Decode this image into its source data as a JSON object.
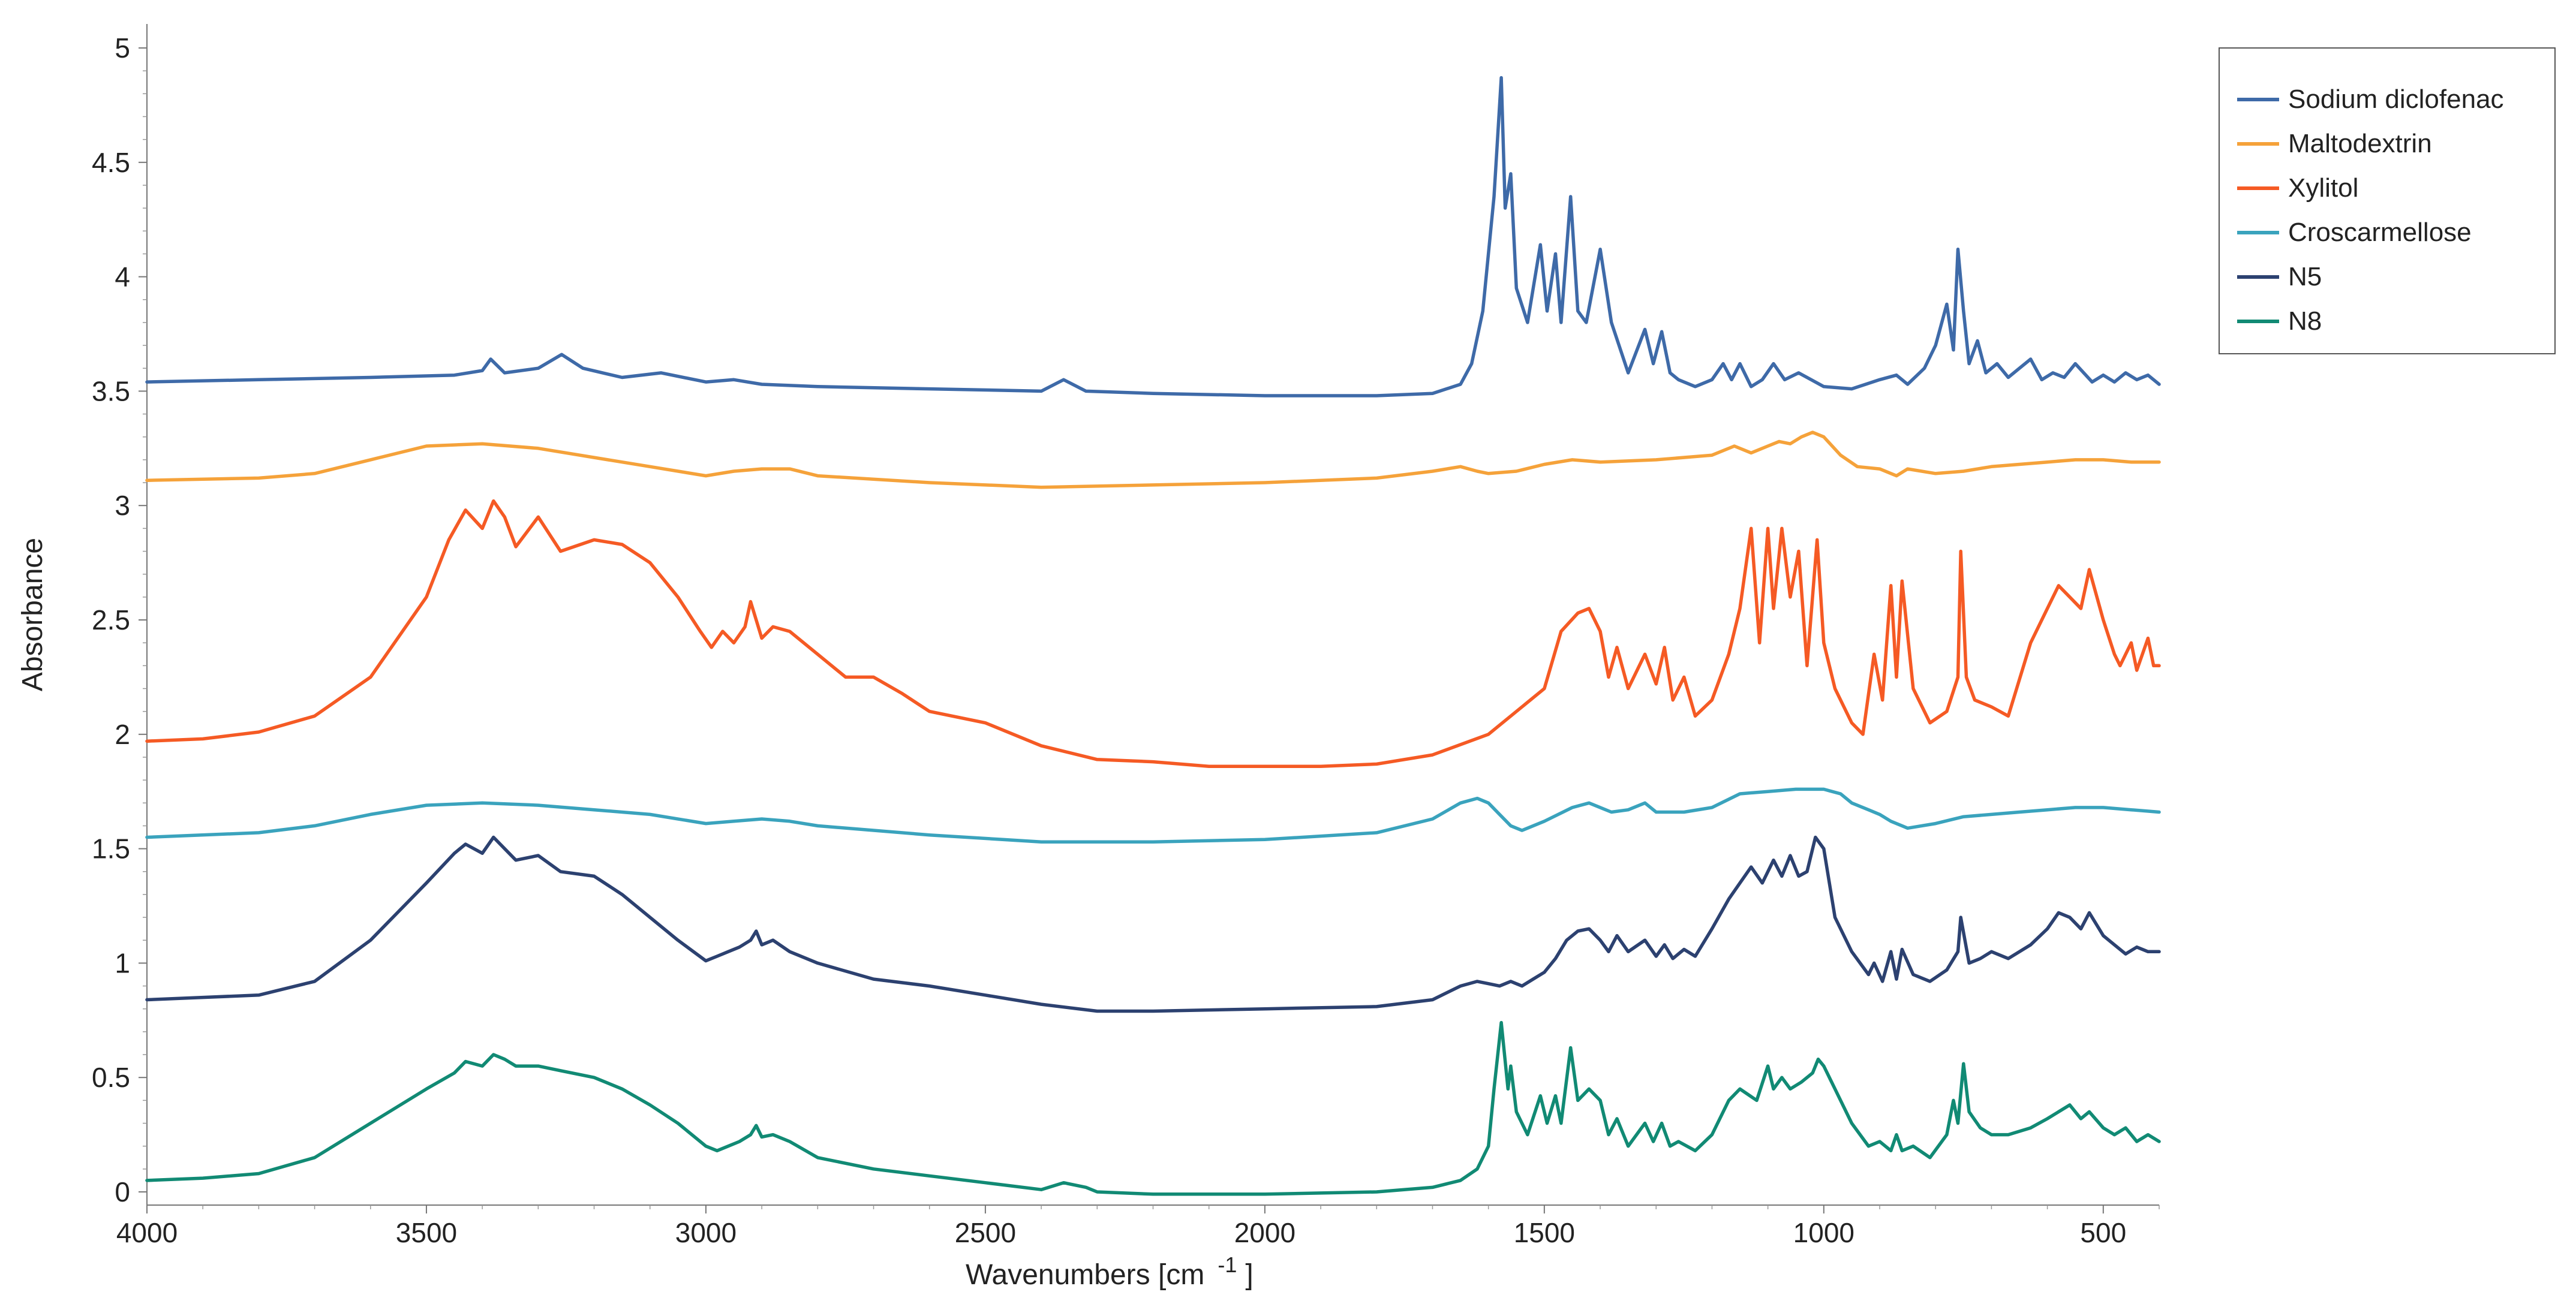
{
  "chart_data": {
    "type": "line",
    "title": "",
    "xlabel": "Wavenumbers [cm",
    "xlabel_superscript": "-1",
    "xlabel_suffix": "]",
    "ylabel": "Absorbance",
    "xlim": [
      4000,
      400
    ],
    "ylim": [
      0,
      5
    ],
    "x_reversed": true,
    "grid": false,
    "legend_position": "top-right",
    "x_ticks": [
      {
        "value": 4000,
        "label": "4000"
      },
      {
        "value": 3500,
        "label": "3500"
      },
      {
        "value": 3000,
        "label": "3000"
      },
      {
        "value": 2500,
        "label": "2500"
      },
      {
        "value": 2000,
        "label": "2000"
      },
      {
        "value": 1500,
        "label": "1500"
      },
      {
        "value": 1000,
        "label": "1000"
      },
      {
        "value": 500,
        "label": "500"
      }
    ],
    "y_ticks": [
      {
        "value": 0,
        "label": "0"
      },
      {
        "value": 0.5,
        "label": "0.5"
      },
      {
        "value": 1,
        "label": "1"
      },
      {
        "value": 1.5,
        "label": "1.5"
      },
      {
        "value": 2,
        "label": "2"
      },
      {
        "value": 2.5,
        "label": "2.5"
      },
      {
        "value": 3,
        "label": "3"
      },
      {
        "value": 3.5,
        "label": "3.5"
      },
      {
        "value": 4,
        "label": "4"
      },
      {
        "value": 4.5,
        "label": "4.5"
      },
      {
        "value": 5,
        "label": "5"
      }
    ],
    "series": [
      {
        "name": "Sodium diclofenac",
        "color": "#3e6aa8",
        "x": [
          4000,
          3800,
          3600,
          3450,
          3400,
          3385,
          3360,
          3300,
          3258,
          3220,
          3150,
          3080,
          3000,
          2950,
          2900,
          2800,
          2600,
          2400,
          2360,
          2320,
          2200,
          2000,
          1800,
          1700,
          1650,
          1630,
          1610,
          1590,
          1577,
          1570,
          1560,
          1550,
          1530,
          1507,
          1495,
          1480,
          1470,
          1453,
          1440,
          1425,
          1400,
          1380,
          1350,
          1320,
          1305,
          1290,
          1275,
          1260,
          1230,
          1200,
          1180,
          1165,
          1150,
          1130,
          1110,
          1090,
          1070,
          1045,
          1000,
          950,
          900,
          870,
          850,
          820,
          800,
          780,
          768,
          760,
          750,
          740,
          725,
          710,
          690,
          670,
          650,
          630,
          610,
          590,
          570,
          550,
          520,
          500,
          480,
          460,
          440,
          420,
          400
        ],
        "values": [
          3.54,
          3.55,
          3.56,
          3.57,
          3.59,
          3.64,
          3.58,
          3.6,
          3.66,
          3.6,
          3.56,
          3.58,
          3.54,
          3.55,
          3.53,
          3.52,
          3.51,
          3.5,
          3.55,
          3.5,
          3.49,
          3.48,
          3.48,
          3.49,
          3.53,
          3.62,
          3.85,
          4.35,
          4.87,
          4.3,
          4.45,
          3.95,
          3.8,
          4.14,
          3.85,
          4.1,
          3.8,
          4.35,
          3.85,
          3.8,
          4.12,
          3.8,
          3.58,
          3.77,
          3.62,
          3.76,
          3.58,
          3.55,
          3.52,
          3.55,
          3.62,
          3.55,
          3.62,
          3.52,
          3.55,
          3.62,
          3.55,
          3.58,
          3.52,
          3.51,
          3.55,
          3.57,
          3.53,
          3.6,
          3.7,
          3.88,
          3.68,
          4.12,
          3.85,
          3.62,
          3.72,
          3.58,
          3.62,
          3.56,
          3.6,
          3.64,
          3.55,
          3.58,
          3.56,
          3.62,
          3.54,
          3.57,
          3.54,
          3.58,
          3.55,
          3.57,
          3.53
        ]
      },
      {
        "name": "Maltodextrin",
        "color": "#f5a23a",
        "x": [
          4000,
          3800,
          3700,
          3600,
          3500,
          3400,
          3300,
          3200,
          3100,
          3000,
          2950,
          2900,
          2850,
          2800,
          2600,
          2400,
          2200,
          2000,
          1800,
          1700,
          1650,
          1620,
          1600,
          1550,
          1500,
          1450,
          1400,
          1300,
          1200,
          1160,
          1130,
          1100,
          1080,
          1060,
          1040,
          1020,
          1000,
          970,
          940,
          900,
          870,
          850,
          800,
          750,
          700,
          650,
          600,
          550,
          500,
          450,
          400
        ],
        "values": [
          3.11,
          3.12,
          3.14,
          3.2,
          3.26,
          3.27,
          3.25,
          3.21,
          3.17,
          3.13,
          3.15,
          3.16,
          3.16,
          3.13,
          3.1,
          3.08,
          3.09,
          3.1,
          3.12,
          3.15,
          3.17,
          3.15,
          3.14,
          3.15,
          3.18,
          3.2,
          3.19,
          3.2,
          3.22,
          3.26,
          3.23,
          3.26,
          3.28,
          3.27,
          3.3,
          3.32,
          3.3,
          3.22,
          3.17,
          3.16,
          3.13,
          3.16,
          3.14,
          3.15,
          3.17,
          3.18,
          3.19,
          3.2,
          3.2,
          3.19,
          3.19
        ]
      },
      {
        "name": "Xylitol",
        "color": "#f55a24",
        "x": [
          4000,
          3900,
          3800,
          3700,
          3600,
          3500,
          3460,
          3430,
          3400,
          3380,
          3360,
          3340,
          3300,
          3260,
          3200,
          3150,
          3100,
          3050,
          3010,
          2990,
          2970,
          2950,
          2930,
          2920,
          2900,
          2880,
          2850,
          2800,
          2750,
          2700,
          2650,
          2600,
          2500,
          2400,
          2300,
          2200,
          2100,
          2000,
          1900,
          1800,
          1700,
          1600,
          1500,
          1470,
          1440,
          1420,
          1400,
          1385,
          1370,
          1350,
          1320,
          1300,
          1285,
          1270,
          1250,
          1230,
          1200,
          1170,
          1150,
          1130,
          1115,
          1100,
          1090,
          1075,
          1060,
          1045,
          1030,
          1012,
          1000,
          980,
          950,
          930,
          910,
          895,
          880,
          870,
          860,
          840,
          810,
          780,
          760,
          755,
          745,
          730,
          700,
          670,
          630,
          600,
          580,
          560,
          540,
          525,
          500,
          480,
          470,
          450,
          440,
          420,
          410,
          400
        ],
        "values": [
          1.97,
          1.98,
          2.01,
          2.08,
          2.25,
          2.6,
          2.85,
          2.98,
          2.9,
          3.02,
          2.95,
          2.82,
          2.95,
          2.8,
          2.85,
          2.83,
          2.75,
          2.6,
          2.45,
          2.38,
          2.45,
          2.4,
          2.47,
          2.58,
          2.42,
          2.47,
          2.45,
          2.35,
          2.25,
          2.25,
          2.18,
          2.1,
          2.05,
          1.95,
          1.89,
          1.88,
          1.86,
          1.86,
          1.86,
          1.87,
          1.91,
          2.0,
          2.2,
          2.45,
          2.53,
          2.55,
          2.45,
          2.25,
          2.38,
          2.2,
          2.35,
          2.22,
          2.38,
          2.15,
          2.25,
          2.08,
          2.15,
          2.35,
          2.55,
          2.9,
          2.4,
          2.9,
          2.55,
          2.9,
          2.6,
          2.8,
          2.3,
          2.85,
          2.4,
          2.2,
          2.05,
          2.0,
          2.35,
          2.15,
          2.65,
          2.25,
          2.67,
          2.2,
          2.05,
          2.1,
          2.25,
          2.8,
          2.25,
          2.15,
          2.12,
          2.08,
          2.4,
          2.55,
          2.65,
          2.6,
          2.55,
          2.72,
          2.5,
          2.35,
          2.3,
          2.4,
          2.28,
          2.42,
          2.3,
          2.3
        ]
      },
      {
        "name": "Croscarmellose",
        "color": "#3aa3bd",
        "x": [
          4000,
          3800,
          3700,
          3600,
          3500,
          3400,
          3300,
          3200,
          3100,
          3000,
          2950,
          2900,
          2850,
          2800,
          2600,
          2400,
          2200,
          2000,
          1800,
          1700,
          1650,
          1620,
          1600,
          1580,
          1560,
          1540,
          1500,
          1450,
          1420,
          1380,
          1350,
          1320,
          1300,
          1250,
          1200,
          1150,
          1100,
          1050,
          1000,
          970,
          950,
          920,
          900,
          880,
          850,
          800,
          750,
          700,
          650,
          600,
          550,
          500,
          450,
          400
        ],
        "values": [
          1.55,
          1.57,
          1.6,
          1.65,
          1.69,
          1.7,
          1.69,
          1.67,
          1.65,
          1.61,
          1.62,
          1.63,
          1.62,
          1.6,
          1.56,
          1.53,
          1.53,
          1.54,
          1.57,
          1.63,
          1.7,
          1.72,
          1.7,
          1.65,
          1.6,
          1.58,
          1.62,
          1.68,
          1.7,
          1.66,
          1.67,
          1.7,
          1.66,
          1.66,
          1.68,
          1.74,
          1.75,
          1.76,
          1.76,
          1.74,
          1.7,
          1.67,
          1.65,
          1.62,
          1.59,
          1.61,
          1.64,
          1.65,
          1.66,
          1.67,
          1.68,
          1.68,
          1.67,
          1.66
        ]
      },
      {
        "name": "N5",
        "color": "#2c4170",
        "x": [
          4000,
          3900,
          3800,
          3700,
          3600,
          3500,
          3450,
          3430,
          3400,
          3380,
          3360,
          3340,
          3300,
          3260,
          3200,
          3150,
          3100,
          3050,
          3000,
          2980,
          2960,
          2940,
          2920,
          2910,
          2900,
          2880,
          2850,
          2800,
          2700,
          2600,
          2500,
          2400,
          2300,
          2200,
          2000,
          1800,
          1700,
          1650,
          1620,
          1600,
          1580,
          1560,
          1540,
          1520,
          1500,
          1480,
          1460,
          1440,
          1420,
          1400,
          1385,
          1370,
          1350,
          1320,
          1300,
          1285,
          1270,
          1250,
          1230,
          1200,
          1170,
          1150,
          1130,
          1110,
          1090,
          1075,
          1060,
          1045,
          1030,
          1015,
          1000,
          980,
          950,
          920,
          910,
          895,
          880,
          870,
          860,
          840,
          810,
          780,
          760,
          755,
          740,
          720,
          700,
          670,
          630,
          600,
          580,
          560,
          540,
          525,
          500,
          480,
          460,
          440,
          420,
          400
        ],
        "values": [
          0.84,
          0.85,
          0.86,
          0.92,
          1.1,
          1.35,
          1.48,
          1.52,
          1.48,
          1.55,
          1.5,
          1.45,
          1.47,
          1.4,
          1.38,
          1.3,
          1.2,
          1.1,
          1.01,
          1.03,
          1.05,
          1.07,
          1.1,
          1.14,
          1.08,
          1.1,
          1.05,
          1.0,
          0.93,
          0.9,
          0.86,
          0.82,
          0.79,
          0.79,
          0.8,
          0.81,
          0.84,
          0.9,
          0.92,
          0.91,
          0.9,
          0.92,
          0.9,
          0.93,
          0.96,
          1.02,
          1.1,
          1.14,
          1.15,
          1.1,
          1.05,
          1.12,
          1.05,
          1.1,
          1.03,
          1.08,
          1.02,
          1.06,
          1.03,
          1.15,
          1.28,
          1.35,
          1.42,
          1.35,
          1.45,
          1.38,
          1.47,
          1.38,
          1.4,
          1.55,
          1.5,
          1.2,
          1.05,
          0.95,
          1.0,
          0.92,
          1.05,
          0.93,
          1.06,
          0.95,
          0.92,
          0.97,
          1.05,
          1.2,
          1.0,
          1.02,
          1.05,
          1.02,
          1.08,
          1.15,
          1.22,
          1.2,
          1.15,
          1.22,
          1.12,
          1.08,
          1.04,
          1.07,
          1.05,
          1.05
        ]
      },
      {
        "name": "N8",
        "color": "#118a74",
        "x": [
          4000,
          3900,
          3800,
          3700,
          3600,
          3500,
          3450,
          3430,
          3400,
          3380,
          3360,
          3340,
          3300,
          3260,
          3200,
          3150,
          3100,
          3050,
          3000,
          2980,
          2960,
          2940,
          2920,
          2910,
          2900,
          2880,
          2850,
          2800,
          2700,
          2600,
          2500,
          2400,
          2360,
          2320,
          2300,
          2200,
          2000,
          1800,
          1700,
          1650,
          1620,
          1600,
          1590,
          1577,
          1565,
          1560,
          1550,
          1530,
          1507,
          1495,
          1480,
          1470,
          1453,
          1440,
          1420,
          1400,
          1385,
          1370,
          1350,
          1320,
          1305,
          1290,
          1275,
          1260,
          1230,
          1200,
          1170,
          1150,
          1120,
          1100,
          1090,
          1075,
          1060,
          1040,
          1020,
          1010,
          1000,
          980,
          950,
          920,
          900,
          880,
          870,
          860,
          840,
          810,
          780,
          768,
          760,
          750,
          740,
          720,
          700,
          670,
          630,
          600,
          580,
          560,
          540,
          525,
          500,
          480,
          460,
          440,
          420,
          400
        ],
        "values": [
          0.05,
          0.06,
          0.08,
          0.15,
          0.3,
          0.45,
          0.52,
          0.57,
          0.55,
          0.6,
          0.58,
          0.55,
          0.55,
          0.53,
          0.5,
          0.45,
          0.38,
          0.3,
          0.2,
          0.18,
          0.2,
          0.22,
          0.25,
          0.29,
          0.24,
          0.25,
          0.22,
          0.15,
          0.1,
          0.07,
          0.04,
          0.01,
          0.04,
          0.02,
          0.0,
          -0.01,
          -0.01,
          0.0,
          0.02,
          0.05,
          0.1,
          0.2,
          0.45,
          0.74,
          0.45,
          0.55,
          0.35,
          0.25,
          0.42,
          0.3,
          0.42,
          0.3,
          0.63,
          0.4,
          0.45,
          0.4,
          0.25,
          0.32,
          0.2,
          0.3,
          0.22,
          0.3,
          0.2,
          0.22,
          0.18,
          0.25,
          0.4,
          0.45,
          0.4,
          0.55,
          0.45,
          0.5,
          0.45,
          0.48,
          0.52,
          0.58,
          0.55,
          0.45,
          0.3,
          0.2,
          0.22,
          0.18,
          0.25,
          0.18,
          0.2,
          0.15,
          0.25,
          0.4,
          0.3,
          0.56,
          0.35,
          0.28,
          0.25,
          0.25,
          0.28,
          0.32,
          0.35,
          0.38,
          0.32,
          0.35,
          0.28,
          0.25,
          0.28,
          0.22,
          0.25,
          0.22
        ]
      }
    ]
  }
}
